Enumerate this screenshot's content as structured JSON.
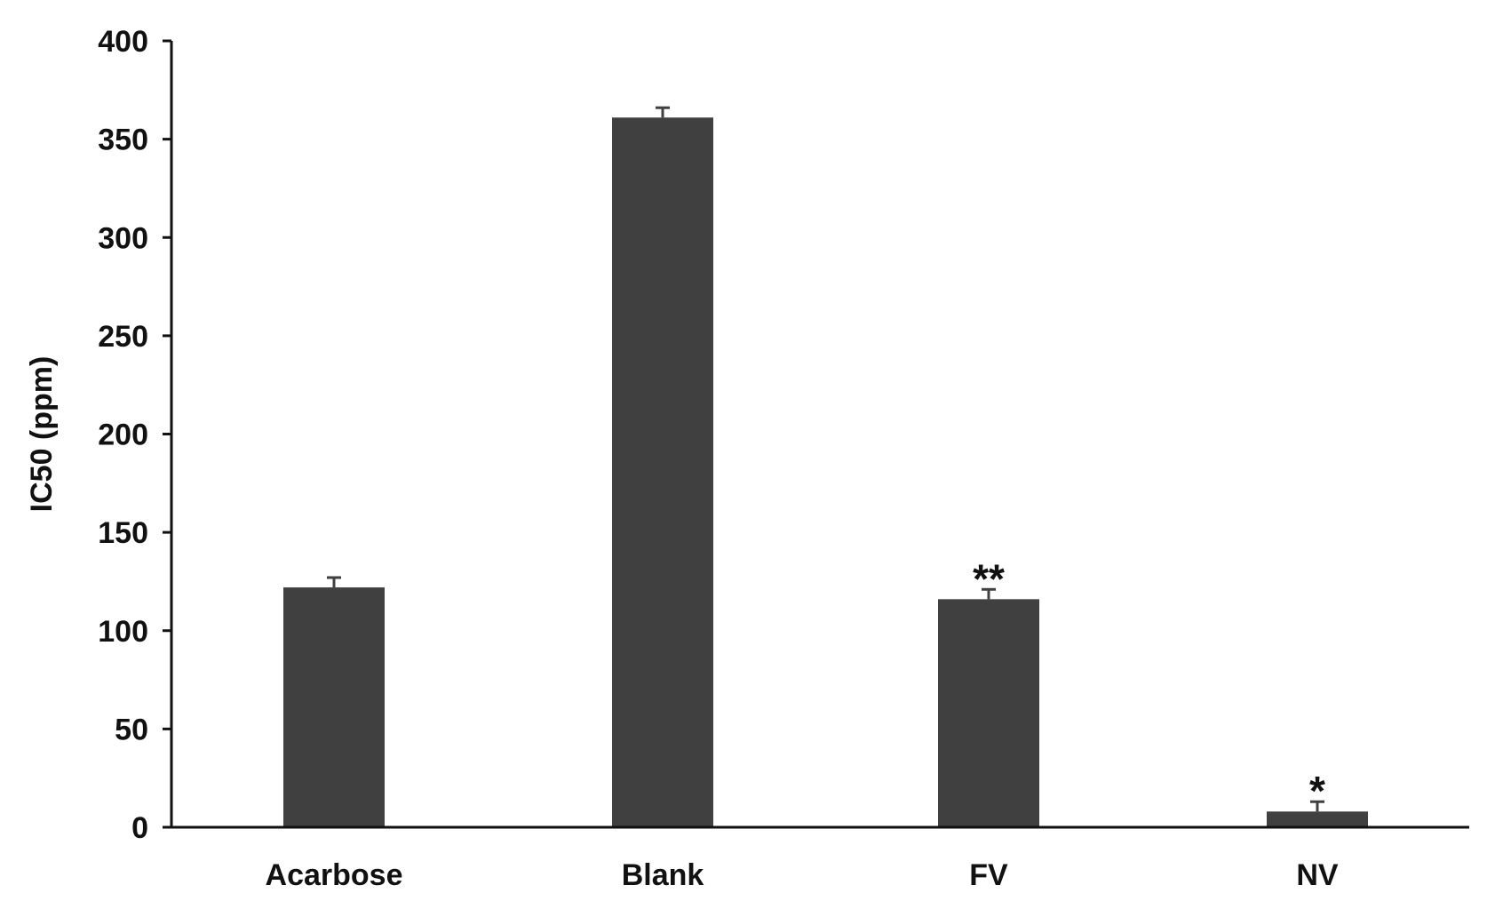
{
  "chart_data": {
    "type": "bar",
    "categories": [
      "Acarbose",
      "Blank",
      "FV",
      "NV"
    ],
    "values": [
      122,
      361,
      116,
      8
    ],
    "errors": [
      5,
      5,
      5,
      5
    ],
    "annotations": [
      "",
      "",
      "**",
      "*"
    ],
    "ylabel": "IC50 (ppm)",
    "xlabel": "",
    "ylim": [
      0,
      400
    ],
    "yticks": [
      "0",
      "50",
      "100",
      "150",
      "200",
      "250",
      "300",
      "350",
      "400"
    ],
    "grid": false,
    "legend": "none",
    "bar_color": "#404040"
  }
}
